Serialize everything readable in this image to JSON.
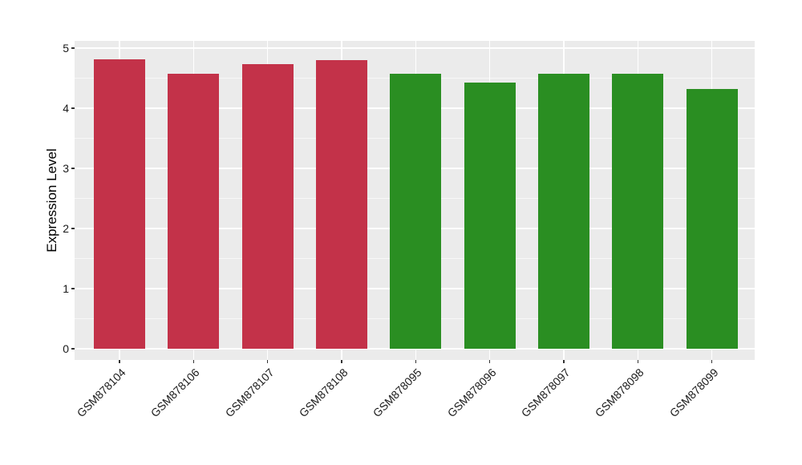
{
  "figure": {
    "background": "#FFFFFF"
  },
  "chart_data": {
    "type": "bar",
    "title": "",
    "xlabel": "",
    "ylabel": "Expression Level",
    "categories": [
      "GSM878104",
      "GSM878106",
      "GSM878107",
      "GSM878108",
      "GSM878095",
      "GSM878096",
      "GSM878097",
      "GSM878098",
      "GSM878099"
    ],
    "values": [
      4.81,
      4.57,
      4.73,
      4.8,
      4.57,
      4.43,
      4.57,
      4.57,
      4.32
    ],
    "bar_colors": [
      "#C33249",
      "#C33249",
      "#C33249",
      "#C33249",
      "#2A8E22",
      "#2A8E22",
      "#2A8E22",
      "#2A8E22",
      "#2A8E22"
    ],
    "ylim": [
      0,
      5
    ],
    "yticks": [
      0,
      1,
      2,
      3,
      4,
      5
    ],
    "minor_gridlines": [
      0.5,
      1.5,
      2.5,
      3.5,
      4.5
    ],
    "legend": "none",
    "grid": "horizontal major+minor, vertical major at category centers",
    "panel_background": "#EBEBEB",
    "gridline_color": "#FFFFFF",
    "tick_mark_color": "#333333",
    "axis_text_color": "#1A1A1A"
  }
}
